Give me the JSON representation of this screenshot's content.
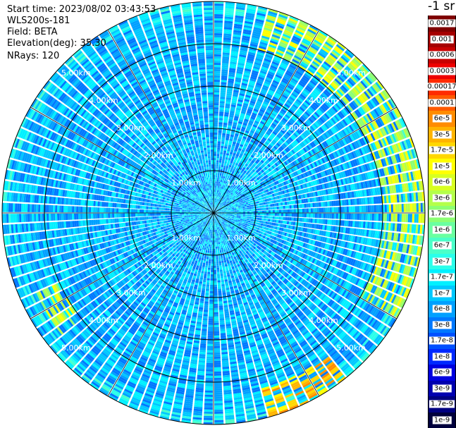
{
  "header": {
    "start_time": "Start time: 2023/08/02 03:43:53",
    "instrument": "WLS200s-181",
    "field": "Field: BETA",
    "elevation": "Elevation(deg): 35.30",
    "nrays": "NRays: 120"
  },
  "units_label": "-1 sr",
  "colorbar": [
    {
      "label": "0.0017",
      "color": "#7f0000",
      "text": "#ffffff"
    },
    {
      "label": "0.001",
      "color": "#a50000",
      "text": "#ffffff"
    },
    {
      "label": "0.0006",
      "color": "#c80000",
      "text": "#ffffff"
    },
    {
      "label": "0.0003",
      "color": "#ee0000",
      "text": "#ffffff"
    },
    {
      "label": "0.00017",
      "color": "#ff2a00",
      "text": "#ffffff"
    },
    {
      "label": "0.0001",
      "color": "#ff5a00",
      "text": "#ffffff"
    },
    {
      "label": "6e-5",
      "color": "#ff8c00",
      "text": "#000000"
    },
    {
      "label": "3e-5",
      "color": "#ffb400",
      "text": "#000000"
    },
    {
      "label": "1.7e-5",
      "color": "#ffd700",
      "text": "#000000"
    },
    {
      "label": "1e-5",
      "color": "#ffff00",
      "text": "#000000"
    },
    {
      "label": "6e-6",
      "color": "#d8ff20",
      "text": "#000000"
    },
    {
      "label": "3e-6",
      "color": "#b4ff4a",
      "text": "#000000"
    },
    {
      "label": "1.7e-6",
      "color": "#8cff73",
      "text": "#000000"
    },
    {
      "label": "1e-6",
      "color": "#6affa0",
      "text": "#000000"
    },
    {
      "label": "6e-7",
      "color": "#4affc8",
      "text": "#000000"
    },
    {
      "label": "3e-7",
      "color": "#2affea",
      "text": "#000000"
    },
    {
      "label": "1.7e-7",
      "color": "#00f0ff",
      "text": "#000000"
    },
    {
      "label": "1e-7",
      "color": "#00c8ff",
      "text": "#000000"
    },
    {
      "label": "6e-8",
      "color": "#00a0ff",
      "text": "#000000"
    },
    {
      "label": "3e-8",
      "color": "#0078ff",
      "text": "#000000"
    },
    {
      "label": "1.7e-8",
      "color": "#0050ff",
      "text": "#000000"
    },
    {
      "label": "1e-8",
      "color": "#0028ff",
      "text": "#ffffff"
    },
    {
      "label": "6e-9",
      "color": "#0000e0",
      "text": "#ffffff"
    },
    {
      "label": "3e-9",
      "color": "#0000b0",
      "text": "#ffffff"
    },
    {
      "label": "1.7e-9",
      "color": "#000080",
      "text": "#ffffff"
    },
    {
      "label": "1e-9",
      "color": "#00003c",
      "text": "#ffffff"
    }
  ],
  "chart_data": {
    "type": "heatmap",
    "subtype": "polar-ppi",
    "field": "BETA",
    "n_rays": 120,
    "max_range_km": 5.0,
    "range_rings_km": [
      1.0,
      2.0,
      3.0,
      4.0,
      5.0
    ],
    "ring_labels": [
      "1.00km",
      "2.00km",
      "3.00km",
      "4.00km",
      "5.00km"
    ],
    "spoke_step_deg": 30,
    "grid": true,
    "color_scale": "log",
    "value_range": [
      1e-09,
      0.0017
    ],
    "description_of_field": {
      "dominant_level_range": [
        "3e-8",
        "1.7e-7"
      ],
      "enhanced_sectors": [
        {
          "azimuth_deg_from": 15,
          "azimuth_deg_to": 120,
          "range_km_from": 4.0,
          "range_km_to": 5.0,
          "level": "1e-5"
        },
        {
          "azimuth_deg_from": 140,
          "azimuth_deg_to": 165,
          "range_km_from": 4.3,
          "range_km_to": 5.0,
          "level": "6e-5"
        },
        {
          "azimuth_deg_from": 230,
          "azimuth_deg_to": 245,
          "range_km_from": 4.0,
          "range_km_to": 4.6,
          "level": "1e-5"
        }
      ]
    }
  }
}
